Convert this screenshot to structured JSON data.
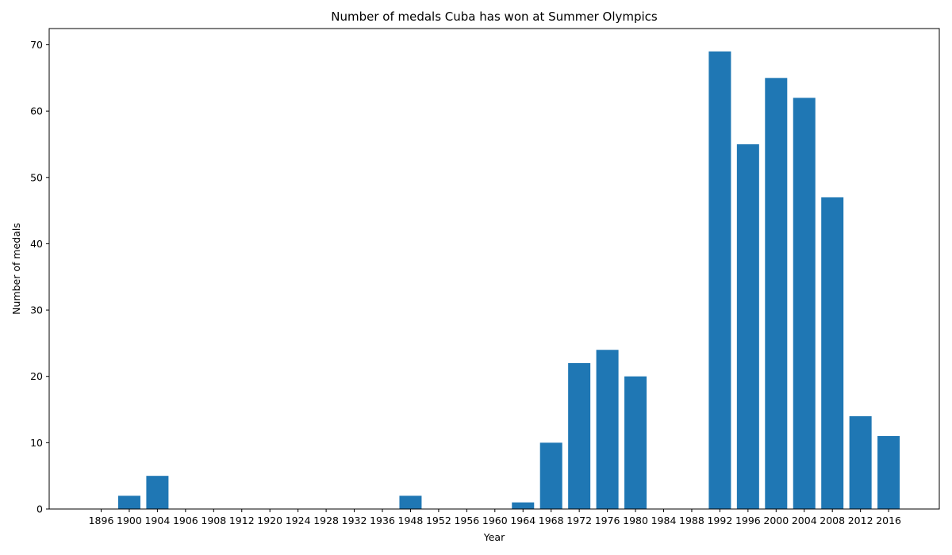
{
  "chart_data": {
    "type": "bar",
    "title": "Number of medals Cuba has won at Summer Olympics",
    "xlabel": "Year",
    "ylabel": "Number of medals",
    "categories": [
      "1896",
      "1900",
      "1904",
      "1906",
      "1908",
      "1912",
      "1920",
      "1924",
      "1928",
      "1932",
      "1936",
      "1948",
      "1952",
      "1956",
      "1960",
      "1964",
      "1968",
      "1972",
      "1976",
      "1980",
      "1984",
      "1988",
      "1992",
      "1996",
      "2000",
      "2004",
      "2008",
      "2012",
      "2016"
    ],
    "values": [
      0,
      2,
      5,
      0,
      0,
      0,
      0,
      0,
      0,
      0,
      0,
      2,
      0,
      0,
      0,
      1,
      10,
      22,
      24,
      20,
      0,
      0,
      69,
      55,
      65,
      62,
      47,
      14,
      11
    ],
    "ylim": [
      0,
      72.45
    ],
    "yticks": [
      0,
      10,
      20,
      30,
      40,
      50,
      60,
      70
    ],
    "bar_color": "#1f77b4",
    "grid": false,
    "legend": "none"
  }
}
